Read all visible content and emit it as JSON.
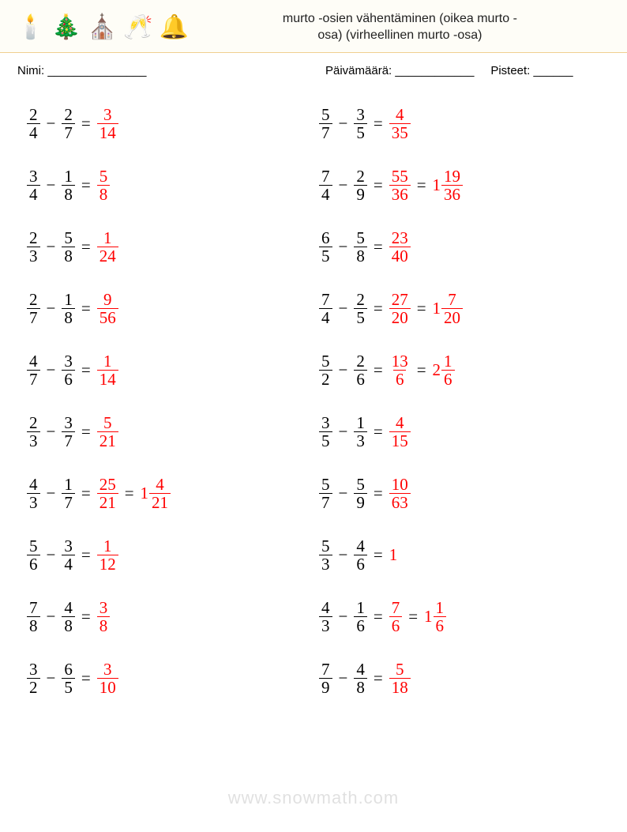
{
  "header": {
    "icons": [
      "🕯️",
      "🎄",
      "⛪",
      "🥂",
      "🔔"
    ],
    "title_line1": "murto -osien vähentäminen (oikea murto -",
    "title_line2": "osa) (virheellinen murto -osa)"
  },
  "meta": {
    "name_label": "Nimi: _______________",
    "date_label": "Päivämäärä: ____________",
    "score_label": "Pisteet: ______"
  },
  "left": [
    {
      "a_n": "2",
      "a_d": "4",
      "b_n": "2",
      "b_d": "7",
      "ans_n": "3",
      "ans_d": "14"
    },
    {
      "a_n": "3",
      "a_d": "4",
      "b_n": "1",
      "b_d": "8",
      "ans_n": "5",
      "ans_d": "8"
    },
    {
      "a_n": "2",
      "a_d": "3",
      "b_n": "5",
      "b_d": "8",
      "ans_n": "1",
      "ans_d": "24"
    },
    {
      "a_n": "2",
      "a_d": "7",
      "b_n": "1",
      "b_d": "8",
      "ans_n": "9",
      "ans_d": "56"
    },
    {
      "a_n": "4",
      "a_d": "7",
      "b_n": "3",
      "b_d": "6",
      "ans_n": "1",
      "ans_d": "14"
    },
    {
      "a_n": "2",
      "a_d": "3",
      "b_n": "3",
      "b_d": "7",
      "ans_n": "5",
      "ans_d": "21"
    },
    {
      "a_n": "4",
      "a_d": "3",
      "b_n": "1",
      "b_d": "7",
      "ans_n": "25",
      "ans_d": "21",
      "mix_w": "1",
      "mix_n": "4",
      "mix_d": "21"
    },
    {
      "a_n": "5",
      "a_d": "6",
      "b_n": "3",
      "b_d": "4",
      "ans_n": "1",
      "ans_d": "12"
    },
    {
      "a_n": "7",
      "a_d": "8",
      "b_n": "4",
      "b_d": "8",
      "ans_n": "3",
      "ans_d": "8"
    },
    {
      "a_n": "3",
      "a_d": "2",
      "b_n": "6",
      "b_d": "5",
      "ans_n": "3",
      "ans_d": "10"
    }
  ],
  "right": [
    {
      "a_n": "5",
      "a_d": "7",
      "b_n": "3",
      "b_d": "5",
      "ans_n": "4",
      "ans_d": "35"
    },
    {
      "a_n": "7",
      "a_d": "4",
      "b_n": "2",
      "b_d": "9",
      "ans_n": "55",
      "ans_d": "36",
      "mix_w": "1",
      "mix_n": "19",
      "mix_d": "36"
    },
    {
      "a_n": "6",
      "a_d": "5",
      "b_n": "5",
      "b_d": "8",
      "ans_n": "23",
      "ans_d": "40"
    },
    {
      "a_n": "7",
      "a_d": "4",
      "b_n": "2",
      "b_d": "5",
      "ans_n": "27",
      "ans_d": "20",
      "mix_w": "1",
      "mix_n": "7",
      "mix_d": "20"
    },
    {
      "a_n": "5",
      "a_d": "2",
      "b_n": "2",
      "b_d": "6",
      "ans_n": "13",
      "ans_d": "6",
      "mix_w": "2",
      "mix_n": "1",
      "mix_d": "6"
    },
    {
      "a_n": "3",
      "a_d": "5",
      "b_n": "1",
      "b_d": "3",
      "ans_n": "4",
      "ans_d": "15"
    },
    {
      "a_n": "5",
      "a_d": "7",
      "b_n": "5",
      "b_d": "9",
      "ans_n": "10",
      "ans_d": "63"
    },
    {
      "a_n": "5",
      "a_d": "3",
      "b_n": "4",
      "b_d": "6",
      "ans_int": "1"
    },
    {
      "a_n": "4",
      "a_d": "3",
      "b_n": "1",
      "b_d": "6",
      "ans_n": "7",
      "ans_d": "6",
      "mix_w": "1",
      "mix_n": "1",
      "mix_d": "6"
    },
    {
      "a_n": "7",
      "a_d": "9",
      "b_n": "4",
      "b_d": "8",
      "ans_n": "5",
      "ans_d": "18"
    }
  ],
  "watermark": "www.snowmath.com"
}
